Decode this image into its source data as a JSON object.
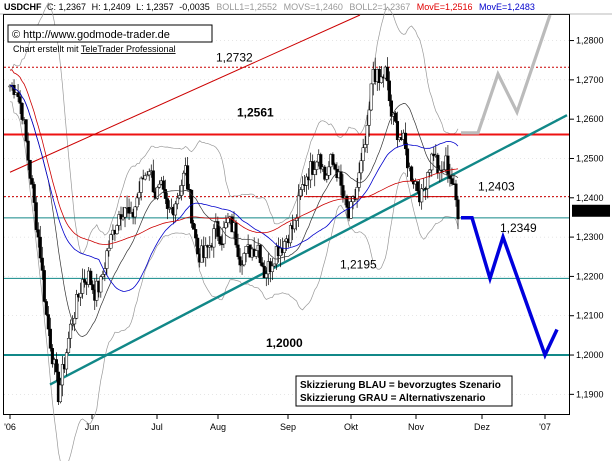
{
  "header": {
    "symbol": "USDCHF",
    "close_label": "C: ",
    "close_value": "1,2367",
    "high_label": "H: ",
    "high_value": "1,2409",
    "low_label": "L: ",
    "low_value": "1,2357",
    "change_value": "-0,0035",
    "boll1_label": "BOLL1=",
    "boll1_value": "1,2552",
    "movs_label": "MOVS=",
    "movs_value": "1,2460",
    "boll2_label": "BOLL2=",
    "boll2_value": "1,2367",
    "move1_label": "MovE=",
    "move1_value": "1,2516",
    "move2_label": "MovE=",
    "move2_value": "1,2483",
    "colors": {
      "symbol": "#000000",
      "boll": "#999999",
      "movs": "#000000",
      "move1": "#e00000",
      "move2": "#0000cc"
    }
  },
  "source": {
    "copyright": "© http://www.godmode-trader.de",
    "credit_prefix": "Chart erstellt mit ",
    "credit_link": "TeleTrader Professional"
  },
  "legend": {
    "line1": "Skizzierung BLAU = bevorzugtes Szenario",
    "line2": "Skizzierung GRAU = Alternativszenario"
  },
  "chart_data": {
    "type": "candlestick",
    "instrument": "USDCHF",
    "ylim": [
      1.185,
      1.2865
    ],
    "y_ticks": [
      1.19,
      1.2,
      1.21,
      1.22,
      1.23,
      1.24,
      1.25,
      1.26,
      1.27,
      1.28
    ],
    "y_tick_labels": [
      "1,1900",
      "1,2000",
      "1,2100",
      "1,2200",
      "1,2300",
      "1,2400",
      "1,2500",
      "1,2600",
      "1,2700",
      "1,2800"
    ],
    "x_ticks": [
      "'06",
      "Jun",
      "Jul",
      "Aug",
      "Sep",
      "Okt",
      "Nov",
      "Dez",
      "'07"
    ],
    "last_price": 1.2367,
    "last_price_label": "1,2367",
    "horizontal_levels": [
      {
        "label": "1,2732",
        "value": 1.2732,
        "style": "dotted",
        "color": "#cc0000"
      },
      {
        "label": "1,2561",
        "value": 1.2561,
        "style": "solid",
        "color": "#ee1111",
        "bold": true
      },
      {
        "label": "1,2403",
        "value": 1.2403,
        "style": "dotted",
        "color": "#cc0000"
      },
      {
        "label": "1,2349",
        "value": 1.2349,
        "style": "solid",
        "color": "#118888"
      },
      {
        "label": "1,2195",
        "value": 1.2195,
        "style": "solid",
        "color": "#118888"
      },
      {
        "label": "1,2000",
        "value": 1.2,
        "style": "solid",
        "color": "#118888",
        "bold": true
      }
    ],
    "close_series_start": "'06",
    "close_series_end": "Nov",
    "close_series": [
      1.2685,
      1.268,
      1.262,
      1.25,
      1.238,
      1.226,
      1.21,
      1.2,
      1.19,
      1.198,
      1.207,
      1.213,
      1.219,
      1.22,
      1.216,
      1.218,
      1.226,
      1.231,
      1.236,
      1.238,
      1.234,
      1.24,
      1.245,
      1.248,
      1.241,
      1.242,
      1.236,
      1.238,
      1.242,
      1.247,
      1.236,
      1.226,
      1.225,
      1.228,
      1.232,
      1.23,
      1.234,
      1.232,
      1.225,
      1.226,
      1.227,
      1.228,
      1.221,
      1.223,
      1.227,
      1.228,
      1.231,
      1.233,
      1.241,
      1.246,
      1.248,
      1.252,
      1.245,
      1.249,
      1.247,
      1.24,
      1.235,
      1.24,
      1.248,
      1.256,
      1.273,
      1.269,
      1.272,
      1.261,
      1.257,
      1.254,
      1.247,
      1.244,
      1.24,
      1.247,
      1.252,
      1.245,
      1.249,
      1.244,
      1.2367
    ],
    "trend_lines": [
      {
        "name": "Aufwaertstrend",
        "color": "#118888",
        "from": [
          "'06",
          1.1925
        ],
        "to": [
          "'07",
          1.261
        ]
      },
      {
        "name": "Trendkanal oben",
        "color": "#cc0000",
        "from": [
          "'06",
          1.2465
        ],
        "to": [
          "Okt",
          1.2865
        ]
      },
      {
        "name": "Trendkanal unten",
        "color": "#cc0000",
        "from": [
          "Sep",
          1.2403
        ],
        "to": [
          "Nov",
          1.2403
        ]
      }
    ],
    "scenarios": [
      {
        "label": "BLAU",
        "color": "#0000dd",
        "points": [
          1.2349,
          1.2349,
          1.2195,
          1.23,
          1.2,
          1.2065
        ]
      },
      {
        "label": "GRAU",
        "color": "#bbbbbb",
        "points": [
          1.2565,
          1.2565,
          1.2715,
          1.2618,
          1.2865
        ]
      }
    ]
  }
}
